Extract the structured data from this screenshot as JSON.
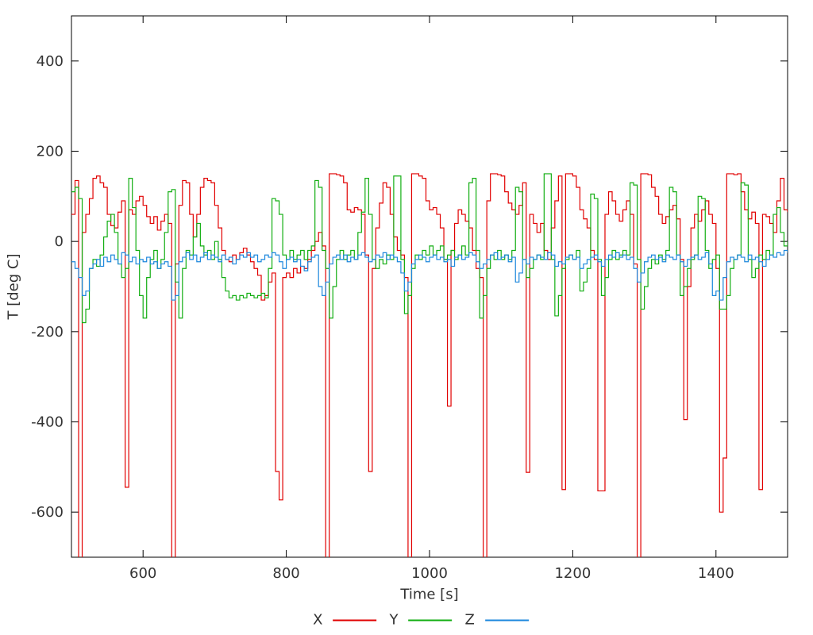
{
  "chart_data": {
    "type": "line",
    "title": "",
    "xlabel": "Time [s]",
    "ylabel": "T [deg C]",
    "xlim": [
      500,
      1500
    ],
    "ylim": [
      -700,
      500
    ],
    "xticks": [
      600,
      800,
      1000,
      1200,
      1400
    ],
    "yticks": [
      -600,
      -400,
      -200,
      0,
      200,
      400
    ],
    "grid": false,
    "legend_position": "bottom-center",
    "line_style": "steps",
    "axis_color": "#000000",
    "tick_label_color": "#333333",
    "x_start": 500,
    "x_step": 5,
    "series": [
      {
        "name": "X",
        "color": "#e10000",
        "values": [
          60,
          135,
          -705,
          20,
          60,
          95,
          140,
          145,
          130,
          120,
          60,
          35,
          30,
          65,
          90,
          -545,
          70,
          60,
          90,
          100,
          80,
          55,
          40,
          55,
          25,
          45,
          60,
          40,
          -705,
          -50,
          80,
          135,
          130,
          60,
          10,
          60,
          120,
          140,
          135,
          130,
          80,
          30,
          -20,
          -40,
          -45,
          -30,
          -40,
          -25,
          -15,
          -30,
          -45,
          -60,
          -75,
          -130,
          -120,
          -90,
          -70,
          -510,
          -573,
          -80,
          -70,
          -80,
          -60,
          -70,
          -55,
          -60,
          -40,
          -20,
          0,
          20,
          -10,
          -705,
          150,
          150,
          148,
          145,
          130,
          70,
          65,
          75,
          70,
          60,
          -30,
          -510,
          -60,
          30,
          85,
          130,
          120,
          60,
          10,
          -20,
          -30,
          -80,
          -705,
          150,
          150,
          145,
          140,
          90,
          70,
          75,
          60,
          30,
          -40,
          -365,
          -20,
          40,
          70,
          60,
          45,
          30,
          -20,
          -60,
          -80,
          -705,
          90,
          150,
          150,
          148,
          145,
          110,
          85,
          70,
          60,
          80,
          130,
          -512,
          60,
          40,
          20,
          40,
          -20,
          -40,
          30,
          90,
          145,
          -550,
          150,
          150,
          145,
          120,
          70,
          50,
          30,
          -20,
          -40,
          -553,
          -553,
          60,
          110,
          90,
          60,
          45,
          70,
          90,
          60,
          -50,
          -705,
          150,
          150,
          148,
          120,
          100,
          60,
          40,
          55,
          70,
          80,
          50,
          -40,
          -395,
          -100,
          30,
          60,
          45,
          70,
          90,
          60,
          40,
          -60,
          -600,
          -480,
          150,
          150,
          148,
          150,
          110,
          70,
          50,
          65,
          40,
          -550,
          60,
          55,
          40,
          20,
          90,
          140,
          70,
          65
        ]
      },
      {
        "name": "Y",
        "color": "#12ae12",
        "values": [
          110,
          120,
          95,
          -180,
          -150,
          -60,
          -40,
          -55,
          -30,
          10,
          45,
          60,
          20,
          -50,
          -80,
          -60,
          140,
          75,
          -20,
          -120,
          -170,
          -80,
          -40,
          -20,
          -60,
          -40,
          20,
          110,
          115,
          -90,
          -170,
          -60,
          -20,
          -30,
          10,
          40,
          -10,
          -30,
          -20,
          -40,
          0,
          -40,
          -80,
          -110,
          -125,
          -120,
          -130,
          -120,
          -125,
          -115,
          -120,
          -125,
          -120,
          -115,
          -125,
          -60,
          95,
          90,
          60,
          -30,
          -40,
          -20,
          -40,
          -30,
          -20,
          -40,
          -20,
          -10,
          135,
          120,
          -20,
          -60,
          -170,
          -100,
          -40,
          -20,
          -40,
          -30,
          -20,
          -40,
          20,
          65,
          140,
          60,
          -40,
          -60,
          -40,
          -50,
          -30,
          -40,
          145,
          145,
          -40,
          -160,
          -120,
          -60,
          -30,
          -40,
          -20,
          -30,
          -10,
          -30,
          -20,
          -10,
          -40,
          -30,
          -20,
          -40,
          -30,
          -10,
          -30,
          130,
          140,
          -20,
          -170,
          -120,
          -60,
          -30,
          -40,
          -20,
          -40,
          -30,
          -40,
          -20,
          120,
          110,
          -40,
          -80,
          -60,
          -40,
          -30,
          -40,
          150,
          150,
          -40,
          -165,
          -120,
          -60,
          -40,
          -30,
          -40,
          -20,
          -110,
          -90,
          -60,
          105,
          95,
          -40,
          -120,
          -80,
          -40,
          -20,
          -40,
          -30,
          -20,
          -30,
          130,
          125,
          -40,
          -150,
          -100,
          -60,
          -40,
          -50,
          -30,
          -40,
          -20,
          120,
          110,
          -30,
          -120,
          -100,
          -60,
          -40,
          -30,
          100,
          95,
          -20,
          -60,
          -40,
          -30,
          -150,
          -150,
          -120,
          -60,
          -40,
          -30,
          130,
          125,
          -40,
          -80,
          -60,
          -30,
          -40,
          -20,
          -30,
          60,
          75,
          20,
          -10,
          0
        ]
      },
      {
        "name": "Z",
        "color": "#1c87dd",
        "values": [
          -45,
          -60,
          -80,
          -120,
          -110,
          -60,
          -50,
          -40,
          -55,
          -35,
          -45,
          -30,
          -40,
          -50,
          -25,
          -30,
          -45,
          -35,
          -50,
          -40,
          -45,
          -35,
          -50,
          -45,
          -60,
          -50,
          -45,
          -55,
          -130,
          -120,
          -45,
          -35,
          -25,
          -40,
          -30,
          -45,
          -35,
          -25,
          -40,
          -30,
          -35,
          -45,
          -30,
          -40,
          -35,
          -50,
          -40,
          -30,
          -35,
          -25,
          -35,
          -30,
          -45,
          -40,
          -30,
          -35,
          -25,
          -30,
          -45,
          -60,
          -40,
          -35,
          -45,
          -40,
          -55,
          -65,
          -45,
          -35,
          -30,
          -100,
          -120,
          -90,
          -50,
          -35,
          -30,
          -40,
          -30,
          -45,
          -35,
          -40,
          -30,
          -25,
          -35,
          -45,
          -40,
          -30,
          -35,
          -25,
          -40,
          -30,
          -35,
          -45,
          -70,
          -110,
          -90,
          -50,
          -40,
          -30,
          -35,
          -45,
          -35,
          -30,
          -40,
          -35,
          -45,
          -40,
          -55,
          -35,
          -30,
          -40,
          -35,
          -25,
          -30,
          -45,
          -60,
          -50,
          -40,
          -30,
          -25,
          -40,
          -35,
          -30,
          -45,
          -35,
          -90,
          -70,
          -40,
          -50,
          -35,
          -40,
          -30,
          -35,
          -40,
          -25,
          -30,
          -55,
          -45,
          -50,
          -35,
          -30,
          -40,
          -35,
          -60,
          -50,
          -40,
          -35,
          -30,
          -45,
          -55,
          -40,
          -30,
          -35,
          -25,
          -35,
          -30,
          -40,
          -35,
          -60,
          -90,
          -70,
          -45,
          -35,
          -30,
          -40,
          -35,
          -45,
          -30,
          -35,
          -40,
          -30,
          -45,
          -55,
          -40,
          -35,
          -30,
          -40,
          -35,
          -25,
          -50,
          -120,
          -110,
          -130,
          -80,
          -45,
          -35,
          -40,
          -30,
          -35,
          -45,
          -30,
          -40,
          -35,
          -45,
          -55,
          -40,
          -30,
          -35,
          -25,
          -30,
          -20,
          -25
        ]
      }
    ]
  }
}
